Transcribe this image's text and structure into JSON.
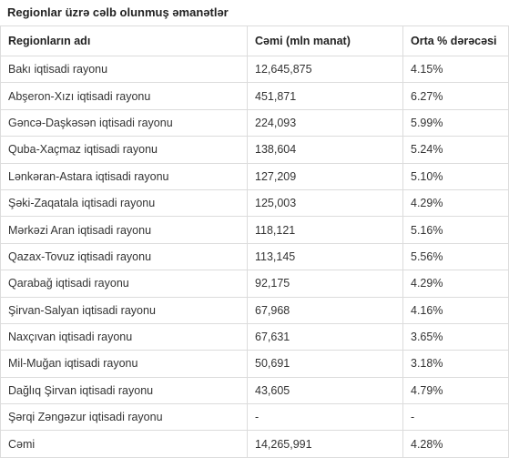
{
  "caption": "Regionlar üzrə cəlb olunmuş əmanətlər",
  "headers": [
    "Regionların adı",
    "Cəmi (mln manat)",
    "Orta % dərəcəsi"
  ],
  "rows": [
    [
      "Bakı iqtisadi rayonu",
      "12,645,875",
      "4.15%"
    ],
    [
      "Abşeron-Xızı iqtisadi rayonu",
      "451,871",
      "6.27%"
    ],
    [
      "Gəncə-Daşkəsən iqtisadi rayonu",
      "224,093",
      "5.99%"
    ],
    [
      "Quba-Xaçmaz iqtisadi rayonu",
      "138,604",
      "5.24%"
    ],
    [
      "Lənkəran-Astara iqtisadi rayonu",
      "127,209",
      "5.10%"
    ],
    [
      "Şəki-Zaqatala iqtisadi rayonu",
      "125,003",
      "4.29%"
    ],
    [
      "Mərkəzi Aran iqtisadi rayonu",
      "118,121",
      "5.16%"
    ],
    [
      "Qazax-Tovuz iqtisadi rayonu",
      "113,145",
      "5.56%"
    ],
    [
      "Qarabağ iqtisadi rayonu",
      "92,175",
      "4.29%"
    ],
    [
      "Şirvan-Salyan iqtisadi rayonu",
      "67,968",
      "4.16%"
    ],
    [
      "Naxçıvan iqtisadi rayonu",
      "67,631",
      "3.65%"
    ],
    [
      "Mil-Muğan iqtisadi rayonu",
      "50,691",
      "3.18%"
    ],
    [
      "Dağlıq Şirvan iqtisadi rayonu",
      "43,605",
      "4.79%"
    ],
    [
      "Şərqi Zəngəzur iqtisadi rayonu",
      "-",
      "-"
    ],
    [
      "Cəmi",
      "14,265,991",
      "4.28%"
    ]
  ]
}
